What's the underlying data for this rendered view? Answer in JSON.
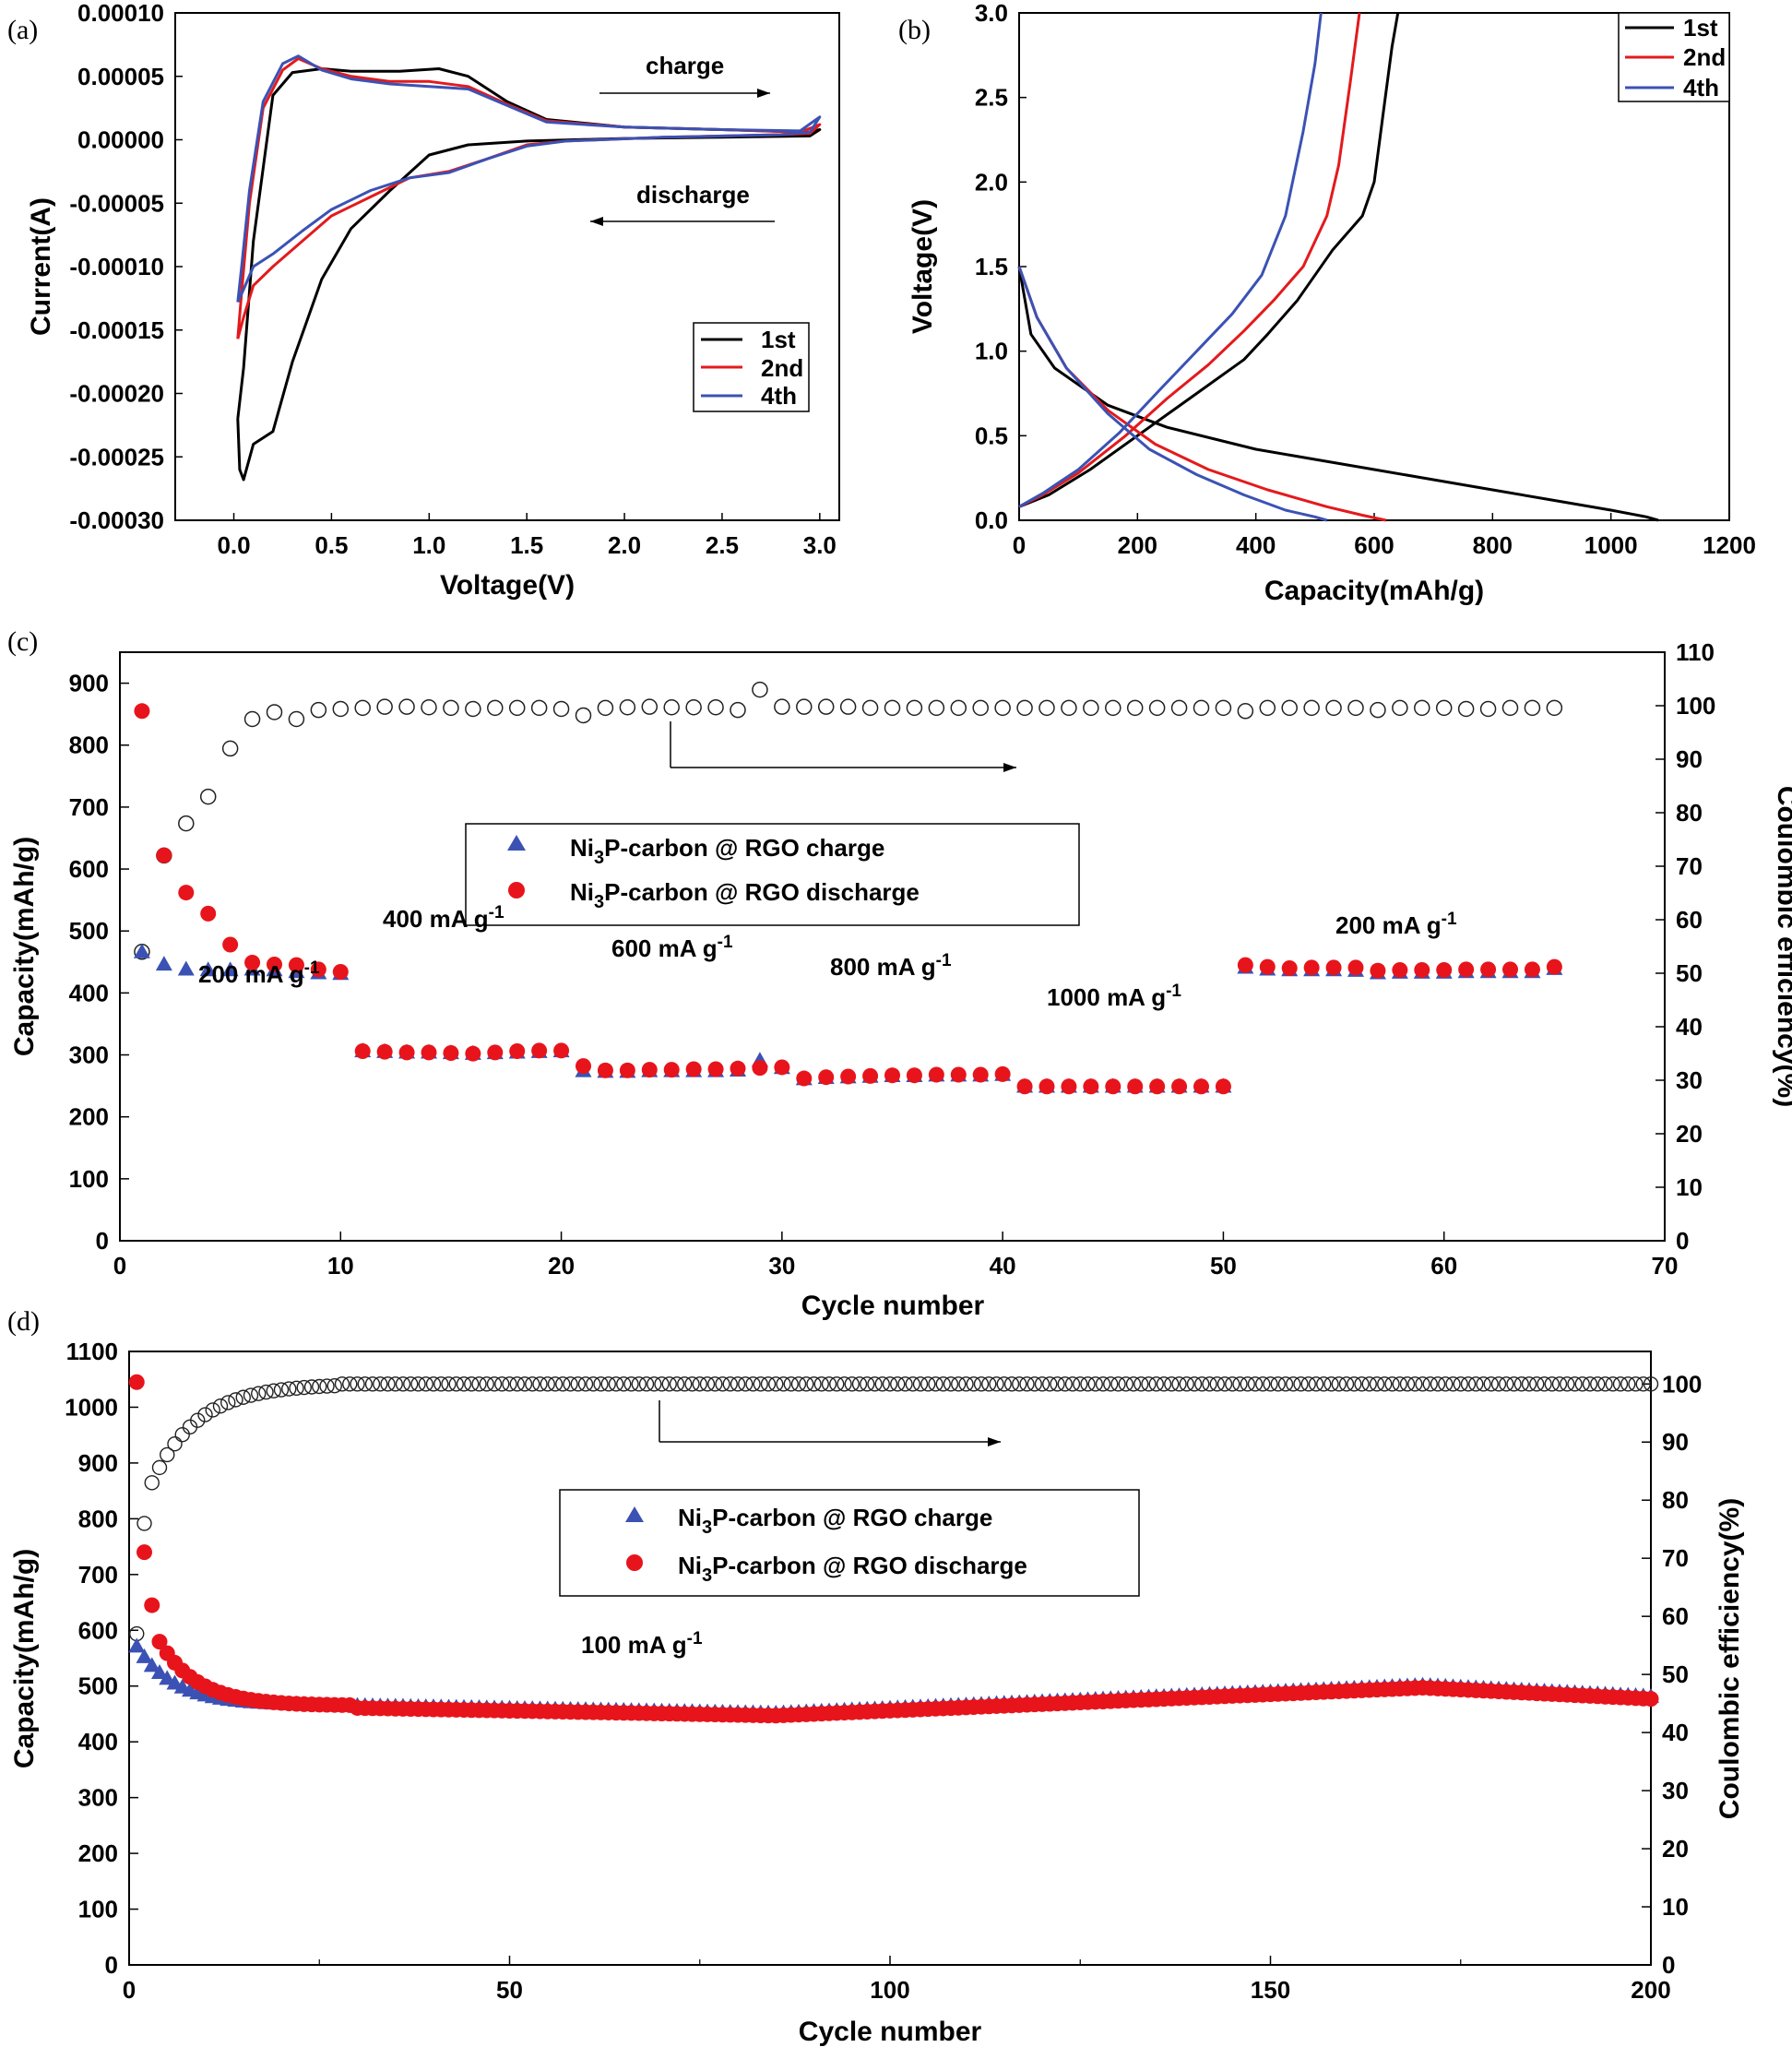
{
  "chart_data": [
    {
      "panel": "(a)",
      "type": "line",
      "xlabel": "Voltage(V)",
      "ylabel": "Current(A)",
      "xlim": [
        -0.3,
        3.1
      ],
      "ylim": [
        -0.0003,
        0.0001
      ],
      "xticks": [
        "0.0",
        "0.5",
        "1.0",
        "1.5",
        "2.0",
        "2.5",
        "3.0"
      ],
      "yticks": [
        "0.00010",
        "0.00005",
        "0.00000",
        "-0.00005",
        "-0.00010",
        "-0.00015",
        "-0.00020",
        "-0.00025",
        "-0.00030"
      ],
      "legend_position": "lower-right",
      "annotations": [
        "charge",
        "discharge"
      ],
      "series": [
        {
          "name": "1st",
          "color": "#000000",
          "points": [
            [
              0.02,
              -0.00022
            ],
            [
              0.03,
              -0.00026
            ],
            [
              0.05,
              -0.000268
            ],
            [
              0.1,
              -0.00024
            ],
            [
              0.2,
              -0.00023
            ],
            [
              0.3,
              -0.000175
            ],
            [
              0.45,
              -0.00011
            ],
            [
              0.6,
              -7e-05
            ],
            [
              0.8,
              -4e-05
            ],
            [
              1.0,
              -1.2e-05
            ],
            [
              1.2,
              -4e-06
            ],
            [
              1.5,
              -1e-06
            ],
            [
              2.0,
              1e-06
            ],
            [
              2.5,
              2e-06
            ],
            [
              2.95,
              3e-06
            ],
            [
              3.0,
              8e-06
            ],
            [
              2.95,
              6e-06
            ],
            [
              2.5,
              8e-06
            ],
            [
              2.0,
              1e-05
            ],
            [
              1.6,
              1.6e-05
            ],
            [
              1.4,
              3e-05
            ],
            [
              1.2,
              5e-05
            ],
            [
              1.05,
              5.6e-05
            ],
            [
              0.85,
              5.4e-05
            ],
            [
              0.6,
              5.4e-05
            ],
            [
              0.45,
              5.6e-05
            ],
            [
              0.3,
              5.3e-05
            ],
            [
              0.2,
              3.5e-05
            ],
            [
              0.1,
              -8e-05
            ],
            [
              0.05,
              -0.00018
            ],
            [
              0.02,
              -0.00022
            ]
          ]
        },
        {
          "name": "2nd",
          "color": "#e31a1c",
          "points": [
            [
              0.02,
              -0.000157
            ],
            [
              0.05,
              -0.00014
            ],
            [
              0.1,
              -0.000115
            ],
            [
              0.2,
              -0.0001
            ],
            [
              0.35,
              -8e-05
            ],
            [
              0.5,
              -6e-05
            ],
            [
              0.7,
              -4.5e-05
            ],
            [
              0.9,
              -3e-05
            ],
            [
              1.1,
              -2.5e-05
            ],
            [
              1.3,
              -1.5e-05
            ],
            [
              1.5,
              -4e-06
            ],
            [
              1.7,
              -1e-06
            ],
            [
              2.2,
              2e-06
            ],
            [
              2.8,
              4e-06
            ],
            [
              2.95,
              5e-06
            ],
            [
              3.0,
              1.2e-05
            ],
            [
              2.9,
              6e-06
            ],
            [
              2.5,
              8e-06
            ],
            [
              2.0,
              1e-05
            ],
            [
              1.6,
              1.5e-05
            ],
            [
              1.4,
              2.8e-05
            ],
            [
              1.2,
              4.2e-05
            ],
            [
              1.0,
              4.6e-05
            ],
            [
              0.8,
              4.6e-05
            ],
            [
              0.6,
              5e-05
            ],
            [
              0.45,
              5.6e-05
            ],
            [
              0.33,
              6.4e-05
            ],
            [
              0.25,
              5.5e-05
            ],
            [
              0.15,
              2.5e-05
            ],
            [
              0.08,
              -5e-05
            ],
            [
              0.04,
              -0.00012
            ],
            [
              0.02,
              -0.000157
            ]
          ]
        },
        {
          "name": "4th",
          "color": "#3b52b4",
          "points": [
            [
              0.02,
              -0.000128
            ],
            [
              0.05,
              -0.000118
            ],
            [
              0.1,
              -0.0001
            ],
            [
              0.2,
              -9e-05
            ],
            [
              0.35,
              -7.2e-05
            ],
            [
              0.5,
              -5.5e-05
            ],
            [
              0.7,
              -4e-05
            ],
            [
              0.9,
              -3e-05
            ],
            [
              1.1,
              -2.6e-05
            ],
            [
              1.3,
              -1.5e-05
            ],
            [
              1.5,
              -5e-06
            ],
            [
              1.7,
              -1e-06
            ],
            [
              2.2,
              2e-06
            ],
            [
              2.8,
              4e-06
            ],
            [
              2.95,
              6e-06
            ],
            [
              3.0,
              1.8e-05
            ],
            [
              2.9,
              7e-06
            ],
            [
              2.5,
              8e-06
            ],
            [
              2.0,
              1e-05
            ],
            [
              1.6,
              1.4e-05
            ],
            [
              1.4,
              2.7e-05
            ],
            [
              1.2,
              4e-05
            ],
            [
              1.0,
              4.2e-05
            ],
            [
              0.8,
              4.4e-05
            ],
            [
              0.6,
              4.8e-05
            ],
            [
              0.45,
              5.5e-05
            ],
            [
              0.33,
              6.6e-05
            ],
            [
              0.25,
              6e-05
            ],
            [
              0.15,
              3e-05
            ],
            [
              0.08,
              -4e-05
            ],
            [
              0.04,
              -0.0001
            ],
            [
              0.02,
              -0.000128
            ]
          ]
        }
      ]
    },
    {
      "panel": "(b)",
      "type": "line",
      "xlabel": "Capacity(mAh/g)",
      "ylabel": "Voltage(V)",
      "xlim": [
        0,
        1200
      ],
      "ylim": [
        0.0,
        3.0
      ],
      "xticks": [
        "0",
        "200",
        "400",
        "600",
        "800",
        "1000",
        "1200"
      ],
      "yticks": [
        "0.0",
        "0.5",
        "1.0",
        "1.5",
        "2.0",
        "2.5",
        "3.0"
      ],
      "legend_position": "top-right",
      "series": [
        {
          "name": "1st",
          "color": "#000000",
          "discharge": [
            [
              0,
              1.5
            ],
            [
              20,
              1.1
            ],
            [
              60,
              0.9
            ],
            [
              150,
              0.68
            ],
            [
              250,
              0.55
            ],
            [
              400,
              0.42
            ],
            [
              500,
              0.36
            ],
            [
              600,
              0.3
            ],
            [
              700,
              0.24
            ],
            [
              800,
              0.18
            ],
            [
              900,
              0.12
            ],
            [
              1000,
              0.06
            ],
            [
              1060,
              0.02
            ],
            [
              1080,
              0.0
            ]
          ],
          "charge": [
            [
              0,
              0.08
            ],
            [
              50,
              0.15
            ],
            [
              120,
              0.3
            ],
            [
              200,
              0.5
            ],
            [
              300,
              0.75
            ],
            [
              380,
              0.95
            ],
            [
              420,
              1.1
            ],
            [
              470,
              1.3
            ],
            [
              530,
              1.6
            ],
            [
              580,
              1.8
            ],
            [
              600,
              2.0
            ],
            [
              615,
              2.4
            ],
            [
              630,
              2.8
            ],
            [
              640,
              3.0
            ]
          ]
        },
        {
          "name": "2nd",
          "color": "#e31a1c",
          "discharge": [
            [
              0,
              1.5
            ],
            [
              30,
              1.2
            ],
            [
              80,
              0.9
            ],
            [
              150,
              0.65
            ],
            [
              230,
              0.45
            ],
            [
              320,
              0.3
            ],
            [
              420,
              0.18
            ],
            [
              520,
              0.08
            ],
            [
              580,
              0.03
            ],
            [
              620,
              0.0
            ]
          ],
          "charge": [
            [
              0,
              0.08
            ],
            [
              40,
              0.15
            ],
            [
              100,
              0.28
            ],
            [
              180,
              0.5
            ],
            [
              250,
              0.72
            ],
            [
              320,
              0.92
            ],
            [
              380,
              1.12
            ],
            [
              430,
              1.3
            ],
            [
              480,
              1.5
            ],
            [
              520,
              1.8
            ],
            [
              540,
              2.1
            ],
            [
              560,
              2.6
            ],
            [
              575,
              3.0
            ]
          ]
        },
        {
          "name": "4th",
          "color": "#3b52b4",
          "discharge": [
            [
              0,
              1.5
            ],
            [
              30,
              1.2
            ],
            [
              80,
              0.9
            ],
            [
              150,
              0.63
            ],
            [
              220,
              0.42
            ],
            [
              300,
              0.27
            ],
            [
              380,
              0.15
            ],
            [
              450,
              0.06
            ],
            [
              500,
              0.02
            ],
            [
              520,
              0.0
            ]
          ],
          "charge": [
            [
              0,
              0.08
            ],
            [
              40,
              0.16
            ],
            [
              100,
              0.3
            ],
            [
              170,
              0.52
            ],
            [
              240,
              0.78
            ],
            [
              300,
              1.0
            ],
            [
              360,
              1.22
            ],
            [
              410,
              1.45
            ],
            [
              450,
              1.8
            ],
            [
              480,
              2.3
            ],
            [
              500,
              2.7
            ],
            [
              510,
              3.0
            ]
          ]
        }
      ]
    },
    {
      "panel": "(c)",
      "type": "scatter",
      "xlabel": "Cycle number",
      "ylabel": "Capacity(mAh/g)",
      "y2label": "Coulombic efficiency(%)",
      "xlim": [
        0,
        70
      ],
      "ylim": [
        0,
        950
      ],
      "y2lim": [
        0,
        110
      ],
      "xticks": [
        "0",
        "10",
        "20",
        "30",
        "40",
        "50",
        "60",
        "70"
      ],
      "yticks": [
        "0",
        "100",
        "200",
        "300",
        "400",
        "500",
        "600",
        "700",
        "800",
        "900"
      ],
      "y2ticks": [
        "0",
        "10",
        "20",
        "30",
        "40",
        "50",
        "60",
        "70",
        "80",
        "90",
        "100",
        "110"
      ],
      "legend": {
        "charge": "Ni3P-carbon @ RGO charge",
        "discharge": "Ni3P-carbon @ RGO discharge",
        "subscript": "3",
        "prefix": "Ni",
        "charge_suffix": "P-carbon @ RGO charge",
        "discharge_suffix": "P-carbon @ RGO discharge",
        "position": "upper-left-center"
      },
      "rate_labels": [
        "200 mA g",
        "400 mA g",
        "600 mA g",
        "800 mA g",
        "1000 mA g",
        "200 mA g"
      ],
      "rate_unit_exponent": "-1",
      "charge": [
        465,
        445,
        437,
        436,
        436,
        437,
        436,
        433,
        431,
        430,
        305,
        304,
        303,
        303,
        302,
        301,
        302,
        303,
        304,
        305,
        273,
        272,
        272,
        273,
        273,
        273,
        273,
        274,
        290,
        278,
        260,
        262,
        263,
        264,
        265,
        265,
        266,
        266,
        266,
        267,
        248,
        248,
        248,
        248,
        248,
        248,
        248,
        248,
        248,
        248,
        440,
        437,
        436,
        436,
        436,
        435,
        431,
        432,
        432,
        432,
        433,
        433,
        433,
        433,
        438
      ],
      "discharge": [
        855,
        622,
        562,
        528,
        478,
        449,
        446,
        445,
        438,
        434,
        306,
        305,
        304,
        304,
        303,
        302,
        304,
        306,
        307,
        307,
        282,
        275,
        275,
        276,
        276,
        277,
        277,
        278,
        279,
        280,
        262,
        264,
        265,
        266,
        267,
        267,
        268,
        268,
        268,
        269,
        249,
        249,
        249,
        249,
        249,
        249,
        249,
        249,
        249,
        249,
        445,
        442,
        440,
        441,
        441,
        441,
        436,
        437,
        437,
        437,
        438,
        438,
        438,
        438,
        442
      ],
      "efficiency": [
        54,
        72,
        78,
        83,
        92,
        97.5,
        98.8,
        97.5,
        99.2,
        99.4,
        99.6,
        99.8,
        99.8,
        99.7,
        99.6,
        99.4,
        99.6,
        99.6,
        99.6,
        99.4,
        98.2,
        99.6,
        99.7,
        99.8,
        99.7,
        99.7,
        99.7,
        99.2,
        103,
        99.8,
        99.8,
        99.8,
        99.8,
        99.6,
        99.6,
        99.6,
        99.6,
        99.6,
        99.6,
        99.6,
        99.6,
        99.6,
        99.6,
        99.6,
        99.6,
        99.6,
        99.6,
        99.6,
        99.6,
        99.6,
        99.0,
        99.6,
        99.6,
        99.6,
        99.6,
        99.6,
        99.2,
        99.6,
        99.6,
        99.6,
        99.4,
        99.4,
        99.6,
        99.6,
        99.6
      ]
    },
    {
      "panel": "(d)",
      "type": "scatter",
      "xlabel": "Cycle number",
      "ylabel": "Capacity(mAh/g)",
      "y2label": "Coulombic efficiency(%)",
      "xlim": [
        0,
        200
      ],
      "ylim": [
        0,
        1100
      ],
      "y2lim": [
        0,
        105.6
      ],
      "xticks": [
        "0",
        "50",
        "100",
        "150",
        "200"
      ],
      "yticks": [
        "0",
        "100",
        "200",
        "300",
        "400",
        "500",
        "600",
        "700",
        "800",
        "900",
        "1000",
        "1100"
      ],
      "y2ticks": [
        "0",
        "10",
        "20",
        "30",
        "40",
        "50",
        "60",
        "70",
        "80",
        "90",
        "100"
      ],
      "legend": {
        "charge": "Ni3P-carbon @ RGO charge",
        "discharge": "Ni3P-carbon @ RGO discharge",
        "subscript": "3",
        "prefix": "Ni",
        "charge_suffix": "P-carbon @ RGO charge",
        "discharge_suffix": "P-carbon @ RGO discharge",
        "position": "upper-center"
      },
      "rate_label": "100 mA g",
      "rate_unit_exponent": "-1",
      "charge_model": {
        "first": 570,
        "plateau_start": 465,
        "note": "fast decay to ~465 by cycle 25, min ~450 near cycle 85, max ~500 near cycle 170, ends ~480 at 200"
      },
      "discharge_model": {
        "first": 1045,
        "second": 740,
        "third": 645,
        "plateau_start": 465
      },
      "efficiency_model": {
        "first": 57,
        "second": 76,
        "third": 83,
        "steady": 100,
        "note": "rises to ~100 by cycle 28 then stays at ~100"
      }
    }
  ],
  "panel_labels": [
    "(a)",
    "(b)",
    "(c)",
    "(d)"
  ],
  "colors": {
    "black": "#000000",
    "red": "#e31a1c",
    "blue": "#3b52b4",
    "charge_marker": "#3b52b4",
    "discharge_marker": "#e8141b"
  }
}
